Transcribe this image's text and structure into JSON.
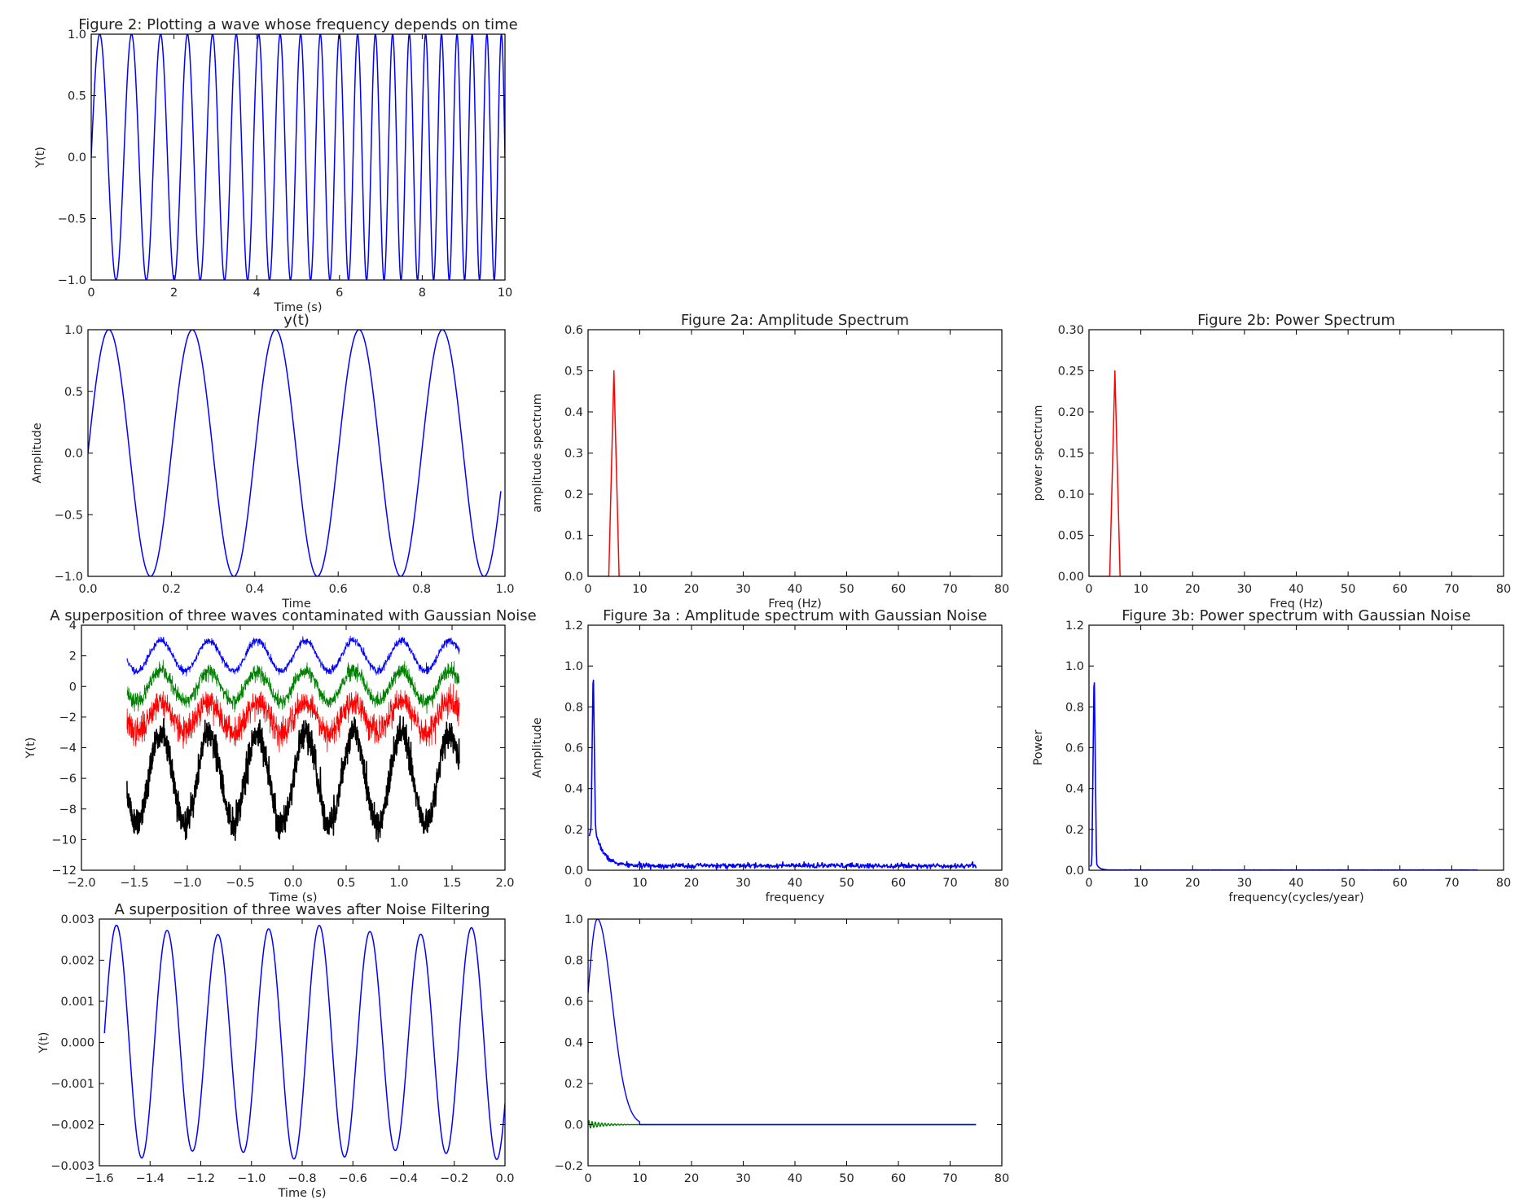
{
  "chart_data": [
    {
      "id": "p1",
      "type": "line",
      "title": "Figure 2: Plotting a wave whose frequency depends on time",
      "xlabel": "Time (s)",
      "ylabel": "Y(t)",
      "xlim": [
        0,
        10
      ],
      "ylim": [
        -1.0,
        1.0
      ],
      "xticks": [
        0,
        2,
        4,
        6,
        8,
        10
      ],
      "xtick_labels": [
        "0",
        "2",
        "4",
        "6",
        "8",
        "10"
      ],
      "yticks": [
        -1.0,
        -0.5,
        0.0,
        0.5,
        1.0
      ],
      "ytick_labels": [
        "−1.0",
        "−0.5",
        "0.0",
        "0.5",
        "1.0"
      ],
      "grid": false,
      "series": [
        {
          "color": "#0000ff",
          "gen": {
            "kind": "chirp",
            "x0": 0,
            "x1": 10,
            "f0": 1.2,
            "f1": 2.9,
            "n": 2400
          }
        }
      ]
    },
    {
      "id": "p2",
      "type": "line",
      "title": "y(t)",
      "xlabel": "Time",
      "ylabel": "Amplitude",
      "xlim": [
        0.0,
        1.0
      ],
      "ylim": [
        -1.0,
        1.0
      ],
      "xticks": [
        0.0,
        0.2,
        0.4,
        0.6,
        0.8,
        1.0
      ],
      "xtick_labels": [
        "0.0",
        "0.2",
        "0.4",
        "0.6",
        "0.8",
        "1.0"
      ],
      "yticks": [
        -1.0,
        -0.5,
        0.0,
        0.5,
        1.0
      ],
      "ytick_labels": [
        "−1.0",
        "−0.5",
        "0.0",
        "0.5",
        "1.0"
      ],
      "grid": false,
      "series": [
        {
          "color": "#0000ff",
          "gen": {
            "kind": "sine",
            "x0": 0,
            "x1": 0.99,
            "freq": 5,
            "amp": 1,
            "offset": 0,
            "n": 600
          }
        }
      ]
    },
    {
      "id": "p3",
      "type": "line",
      "title": "Figure 2a: Amplitude Spectrum",
      "xlabel": "Freq (Hz)",
      "ylabel": "amplitude spectrum",
      "xlim": [
        0,
        80
      ],
      "ylim": [
        0.0,
        0.6
      ],
      "xticks": [
        0,
        10,
        20,
        30,
        40,
        50,
        60,
        70,
        80
      ],
      "xtick_labels": [
        "0",
        "10",
        "20",
        "30",
        "40",
        "50",
        "60",
        "70",
        "80"
      ],
      "yticks": [
        0.0,
        0.1,
        0.2,
        0.3,
        0.4,
        0.5,
        0.6
      ],
      "ytick_labels": [
        "0.0",
        "0.1",
        "0.2",
        "0.3",
        "0.4",
        "0.5",
        "0.6"
      ],
      "grid": false,
      "series": [
        {
          "color": "#ff0000",
          "x": [
            0,
            4,
            5,
            6,
            74
          ],
          "y": [
            0,
            0,
            0.5,
            0,
            0
          ]
        }
      ]
    },
    {
      "id": "p4",
      "type": "line",
      "title": "Figure 2b: Power Spectrum",
      "xlabel": "Freq (Hz)",
      "ylabel": "power spectrum",
      "xlim": [
        0,
        80
      ],
      "ylim": [
        0.0,
        0.3
      ],
      "xticks": [
        0,
        10,
        20,
        30,
        40,
        50,
        60,
        70,
        80
      ],
      "xtick_labels": [
        "0",
        "10",
        "20",
        "30",
        "40",
        "50",
        "60",
        "70",
        "80"
      ],
      "yticks": [
        0.0,
        0.05,
        0.1,
        0.15,
        0.2,
        0.25,
        0.3
      ],
      "ytick_labels": [
        "0.00",
        "0.05",
        "0.10",
        "0.15",
        "0.20",
        "0.25",
        "0.30"
      ],
      "grid": false,
      "series": [
        {
          "color": "#ff0000",
          "x": [
            0,
            4,
            5,
            6,
            74
          ],
          "y": [
            0,
            0,
            0.25,
            0,
            0
          ]
        }
      ]
    },
    {
      "id": "p5",
      "type": "line",
      "title": "A superposition of three waves contaminated with  Gaussian Noise",
      "xlabel": "Time (s)",
      "ylabel": "Y(t)",
      "xlim": [
        -2.0,
        2.0
      ],
      "ylim": [
        -12,
        4
      ],
      "xticks": [
        -2.0,
        -1.5,
        -1.0,
        -0.5,
        0.0,
        0.5,
        1.0,
        1.5,
        2.0
      ],
      "xtick_labels": [
        "−2.0",
        "−1.5",
        "−1.0",
        "−0.5",
        "0.0",
        "0.5",
        "1.0",
        "1.5",
        "2.0"
      ],
      "yticks": [
        -12,
        -10,
        -8,
        -6,
        -4,
        -2,
        0,
        2,
        4
      ],
      "ytick_labels": [
        "−12",
        "−10",
        "−8",
        "−6",
        "−4",
        "−2",
        "0",
        "2",
        "4"
      ],
      "grid": false,
      "series": [
        {
          "color": "#0000ff",
          "width": 0.8,
          "gen": {
            "kind": "noisy",
            "x0": -1.57,
            "x1": 1.57,
            "freq": 2.2,
            "amp": 1.0,
            "offset": 2.0,
            "noise": 0.12,
            "n": 1500,
            "seed": 11
          }
        },
        {
          "color": "#008000",
          "width": 0.8,
          "gen": {
            "kind": "noisy",
            "x0": -1.57,
            "x1": 1.57,
            "freq": 2.2,
            "amp": 1.0,
            "offset": 0.0,
            "noise": 0.25,
            "n": 1500,
            "seed": 23
          }
        },
        {
          "color": "#ff0000",
          "width": 0.8,
          "gen": {
            "kind": "noisy",
            "x0": -1.57,
            "x1": 1.57,
            "freq": 2.2,
            "amp": 1.0,
            "offset": -2.0,
            "noise": 0.45,
            "n": 1500,
            "seed": 37
          }
        },
        {
          "color": "#000000",
          "width": 1.6,
          "gen": {
            "kind": "noisy",
            "x0": -1.57,
            "x1": 1.57,
            "freq": 2.2,
            "amp": 3.0,
            "offset": -6.0,
            "noise": 0.5,
            "n": 1500,
            "seed": 51
          }
        }
      ]
    },
    {
      "id": "p6",
      "type": "line",
      "title": "Figure 3a : Amplitude spectrum with Gaussian Noise",
      "xlabel": "frequency",
      "ylabel": "Amplitude",
      "xlim": [
        0,
        80
      ],
      "ylim": [
        0.0,
        1.2
      ],
      "xticks": [
        0,
        10,
        20,
        30,
        40,
        50,
        60,
        70,
        80
      ],
      "xtick_labels": [
        "0",
        "10",
        "20",
        "30",
        "40",
        "50",
        "60",
        "70",
        "80"
      ],
      "yticks": [
        0.0,
        0.2,
        0.4,
        0.6,
        0.8,
        1.0,
        1.2
      ],
      "ytick_labels": [
        "0.0",
        "0.2",
        "0.4",
        "0.6",
        "0.8",
        "1.0",
        "1.2"
      ],
      "grid": false,
      "series": [
        {
          "color": "#0000ff",
          "width": 1.6,
          "gen": {
            "kind": "spectrum",
            "x0": 0.2,
            "x1": 75,
            "peakx": 1.0,
            "peak": 1.01,
            "tail": 0.17,
            "decay": 1.6,
            "floor": 0.022,
            "noise": 0.006,
            "n": 800,
            "seed": 7
          }
        }
      ]
    },
    {
      "id": "p7",
      "type": "line",
      "title": "Figure 3b: Power spectrum with Gaussian Noise",
      "xlabel": "frequency(cycles/year)",
      "ylabel": "Power",
      "xlim": [
        0,
        80
      ],
      "ylim": [
        0.0,
        1.2
      ],
      "xticks": [
        0,
        10,
        20,
        30,
        40,
        50,
        60,
        70,
        80
      ],
      "xtick_labels": [
        "0",
        "10",
        "20",
        "30",
        "40",
        "50",
        "60",
        "70",
        "80"
      ],
      "yticks": [
        0.0,
        0.2,
        0.4,
        0.6,
        0.8,
        1.0,
        1.2
      ],
      "ytick_labels": [
        "0.0",
        "0.2",
        "0.4",
        "0.6",
        "0.8",
        "1.0",
        "1.2"
      ],
      "grid": false,
      "series": [
        {
          "color": "#0000ff",
          "width": 1.6,
          "gen": {
            "kind": "spectrum",
            "x0": 0.2,
            "x1": 75,
            "peakx": 1.0,
            "peak": 1.01,
            "tail": 0.03,
            "decay": 0.6,
            "floor": 0.001,
            "noise": 0.0004,
            "n": 800,
            "seed": 9
          }
        }
      ]
    },
    {
      "id": "p8",
      "type": "line",
      "title": "A superposition of three waves after Noise Filtering",
      "xlabel": "Time (s)",
      "ylabel": "Y(t)",
      "xlim": [
        -1.6,
        0.0
      ],
      "ylim": [
        -0.003,
        0.003
      ],
      "xticks": [
        -1.6,
        -1.4,
        -1.2,
        -1.0,
        -0.8,
        -0.6,
        -0.4,
        -0.2,
        0.0
      ],
      "xtick_labels": [
        "−1.6",
        "−1.4",
        "−1.2",
        "−1.0",
        "−0.8",
        "−0.6",
        "−0.4",
        "−0.2",
        "0.0"
      ],
      "yticks": [
        -0.003,
        -0.002,
        -0.001,
        0.0,
        0.001,
        0.002,
        0.003
      ],
      "ytick_labels": [
        "−0.003",
        "−0.002",
        "−0.001",
        "0.000",
        "0.001",
        "0.002",
        "0.003"
      ],
      "grid": false,
      "series": [
        {
          "color": "#0000ff",
          "gen": {
            "kind": "filtered",
            "x0": -1.58,
            "x1": 0.0,
            "freq": 5.0,
            "amp": 0.00285,
            "n": 1200
          }
        }
      ]
    },
    {
      "id": "p9",
      "type": "line",
      "title": "",
      "xlabel": "",
      "ylabel": "",
      "xlim": [
        0,
        80
      ],
      "ylim": [
        -0.2,
        1.0
      ],
      "xticks": [
        0,
        10,
        20,
        30,
        40,
        50,
        60,
        70,
        80
      ],
      "xtick_labels": [
        "0",
        "10",
        "20",
        "30",
        "40",
        "50",
        "60",
        "70",
        "80"
      ],
      "yticks": [
        -0.2,
        0.0,
        0.2,
        0.4,
        0.6,
        0.8,
        1.0
      ],
      "ytick_labels": [
        "−0.2",
        "0.0",
        "0.2",
        "0.4",
        "0.6",
        "0.8",
        "1.0"
      ],
      "grid": false,
      "series": [
        {
          "color": "#008000",
          "width": 1.4,
          "gen": {
            "kind": "ripple",
            "x0": 0,
            "x1": 75,
            "n": 900
          }
        },
        {
          "color": "#0000ff",
          "width": 1.4,
          "gen": {
            "kind": "gauss",
            "x0": 0,
            "x1": 75,
            "mu": 1.8,
            "sigma": 2.8,
            "peak": 1.0,
            "cut": 10,
            "n": 900
          }
        }
      ]
    }
  ]
}
